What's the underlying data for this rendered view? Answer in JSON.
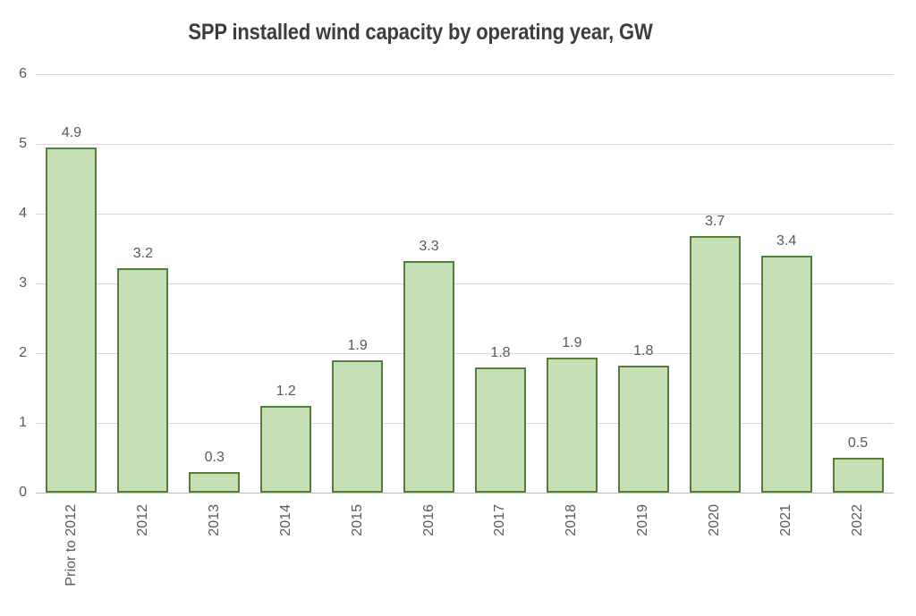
{
  "title": "SPP installed wind capacity by operating year, GW",
  "chart_data": {
    "type": "bar",
    "title": "SPP installed wind capacity by operating year, GW",
    "xlabel": "",
    "ylabel": "",
    "categories": [
      "Prior to 2012",
      "2012",
      "2013",
      "2014",
      "2015",
      "2016",
      "2017",
      "2018",
      "2019",
      "2020",
      "2021",
      "2022"
    ],
    "values": [
      4.95,
      3.22,
      0.3,
      1.25,
      1.9,
      3.32,
      1.8,
      1.93,
      1.82,
      3.68,
      3.4,
      0.5
    ],
    "data_labels": [
      "4.9",
      "3.2",
      "0.3",
      "1.2",
      "1.9",
      "3.3",
      "1.8",
      "1.9",
      "1.8",
      "3.7",
      "3.4",
      "0.5"
    ],
    "yticks": [
      0,
      1,
      2,
      3,
      4,
      5,
      6
    ],
    "ylim": [
      0,
      6
    ],
    "grid": true,
    "legend": false,
    "colors": {
      "bar_fill": "#c5e0b4",
      "bar_border": "#538135",
      "gridline": "#d9d9d9",
      "axis_line": "#bfbfbf",
      "tick_label": "#595959",
      "data_label": "#595959",
      "title": "#3d3d3d"
    }
  }
}
